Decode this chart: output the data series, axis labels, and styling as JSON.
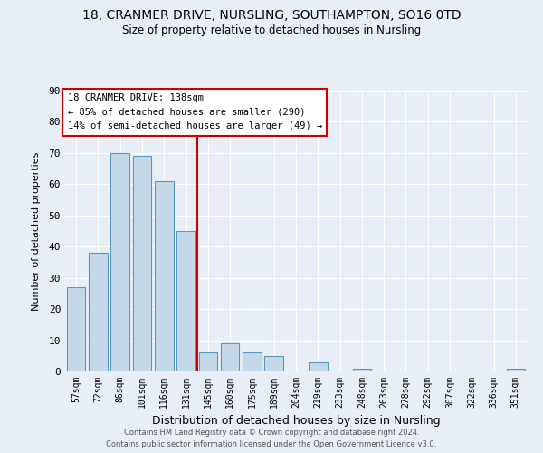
{
  "title1": "18, CRANMER DRIVE, NURSLING, SOUTHAMPTON, SO16 0TD",
  "title2": "Size of property relative to detached houses in Nursling",
  "xlabel": "Distribution of detached houses by size in Nursling",
  "ylabel": "Number of detached properties",
  "categories": [
    "57sqm",
    "72sqm",
    "86sqm",
    "101sqm",
    "116sqm",
    "131sqm",
    "145sqm",
    "160sqm",
    "175sqm",
    "189sqm",
    "204sqm",
    "219sqm",
    "233sqm",
    "248sqm",
    "263sqm",
    "278sqm",
    "292sqm",
    "307sqm",
    "322sqm",
    "336sqm",
    "351sqm"
  ],
  "values": [
    27,
    38,
    70,
    69,
    61,
    45,
    6,
    9,
    6,
    5,
    0,
    3,
    0,
    1,
    0,
    0,
    0,
    0,
    0,
    0,
    1
  ],
  "bar_color": "#c5d8e8",
  "bar_edge_color": "#5a9abf",
  "background_color": "#e8eef5",
  "grid_color": "#ffffff",
  "property_line_x": 5.5,
  "annotation_lines": [
    "18 CRANMER DRIVE: 138sqm",
    "← 85% of detached houses are smaller (290)",
    "14% of semi-detached houses are larger (49) →"
  ],
  "annotation_box_color": "#ffffff",
  "annotation_box_edge_color": "#cc0000",
  "red_line_color": "#cc0000",
  "footer": "Contains HM Land Registry data © Crown copyright and database right 2024.\nContains public sector information licensed under the Open Government Licence v3.0.",
  "ylim": [
    0,
    90
  ],
  "yticks": [
    0,
    10,
    20,
    30,
    40,
    50,
    60,
    70,
    80,
    90
  ]
}
